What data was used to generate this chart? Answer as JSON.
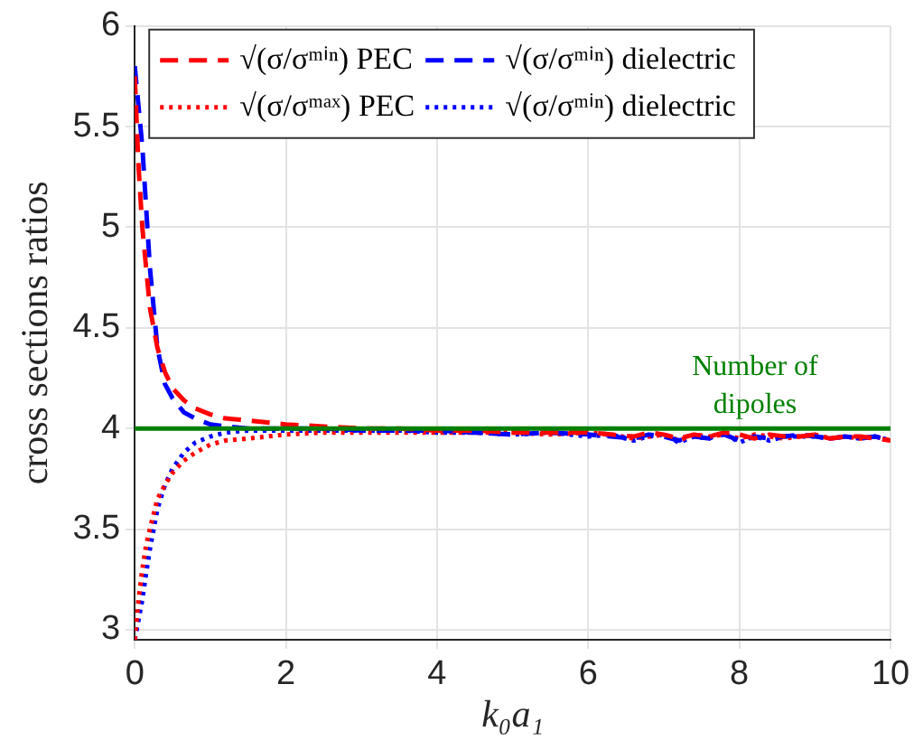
{
  "chart_data": {
    "type": "line",
    "xlabel": "k₀a₁",
    "ylabel": "cross sections ratios",
    "x": [
      0,
      0.05,
      0.1,
      0.15,
      0.2,
      0.3,
      0.4,
      0.5,
      0.65,
      0.8,
      1,
      1.2,
      1.5,
      2,
      2.5,
      3,
      3.5,
      4,
      4.5,
      5,
      5.5,
      6,
      6.3,
      6.6,
      6.8,
      7,
      7.2,
      7.4,
      7.6,
      7.8,
      8,
      8.2,
      8.4,
      8.6,
      8.8,
      9,
      9.2,
      9.4,
      9.6,
      9.8,
      10
    ],
    "series": [
      {
        "name": "√(σ/σᵐⁱⁿ) PEC",
        "color": "#ff0000",
        "line_style": "dashed",
        "values": [
          5.75,
          5.3,
          5.0,
          4.8,
          4.6,
          4.4,
          4.28,
          4.2,
          4.14,
          4.1,
          4.07,
          4.05,
          4.04,
          4.02,
          4.01,
          4.0,
          4.0,
          3.99,
          3.99,
          3.98,
          3.98,
          3.98,
          3.97,
          3.96,
          3.98,
          3.97,
          3.95,
          3.97,
          3.96,
          3.98,
          3.97,
          3.95,
          3.97,
          3.96,
          3.96,
          3.97,
          3.95,
          3.96,
          3.96,
          3.95,
          3.94
        ]
      },
      {
        "name": "√(σ/σᵐⁱⁿ) dielectric",
        "color": "#0000ff",
        "line_style": "dashed",
        "values": [
          5.8,
          5.6,
          5.4,
          5.1,
          4.8,
          4.4,
          4.22,
          4.15,
          4.08,
          4.05,
          4.02,
          4.01,
          4.0,
          4.0,
          4.0,
          3.99,
          3.99,
          3.99,
          3.98,
          3.97,
          3.98,
          3.97,
          3.96,
          3.95,
          3.97,
          3.96,
          3.94,
          3.96,
          3.95,
          3.97,
          3.94,
          3.96,
          3.95,
          3.96,
          3.97,
          3.96,
          3.95,
          3.96,
          3.95,
          3.96,
          3.94
        ]
      },
      {
        "name": "√(σ/σᵐᵃˣ) PEC",
        "color": "#ff0000",
        "line_style": "dotted",
        "values": [
          2.95,
          3.15,
          3.3,
          3.42,
          3.5,
          3.65,
          3.72,
          3.78,
          3.84,
          3.88,
          3.92,
          3.94,
          3.95,
          3.97,
          3.98,
          3.98,
          3.98,
          3.98,
          3.98,
          3.98,
          3.97,
          3.98,
          3.97,
          3.95,
          3.96,
          3.97,
          3.94,
          3.97,
          3.96,
          3.97,
          3.95,
          3.97,
          3.96,
          3.95,
          3.96,
          3.97,
          3.95,
          3.96,
          3.95,
          3.96,
          3.94
        ]
      },
      {
        "name": "√(σ/σᵐⁱⁿ) dielectric",
        "color": "#0000ff",
        "line_style": "dotted",
        "values": [
          2.95,
          3.05,
          3.15,
          3.28,
          3.4,
          3.6,
          3.72,
          3.8,
          3.88,
          3.93,
          3.96,
          3.98,
          3.99,
          3.99,
          3.99,
          3.99,
          3.99,
          3.98,
          3.98,
          3.97,
          3.98,
          3.96,
          3.97,
          3.94,
          3.96,
          3.97,
          3.93,
          3.96,
          3.95,
          3.98,
          3.93,
          3.96,
          3.94,
          3.96,
          3.96,
          3.96,
          3.95,
          3.96,
          3.95,
          3.96,
          3.94
        ]
      }
    ],
    "xlim": [
      0,
      10
    ],
    "xticks": [
      0,
      2,
      4,
      6,
      8,
      10
    ],
    "ylim": [
      2.95,
      6
    ],
    "yticks": [
      3,
      3.5,
      4,
      4.5,
      5,
      5.5,
      6
    ],
    "ref_lines": [
      {
        "axis": "y",
        "value": 4,
        "label": "Number of dipoles",
        "color": "#008000"
      }
    ],
    "grid": true,
    "legend": "top",
    "marker": "none"
  }
}
